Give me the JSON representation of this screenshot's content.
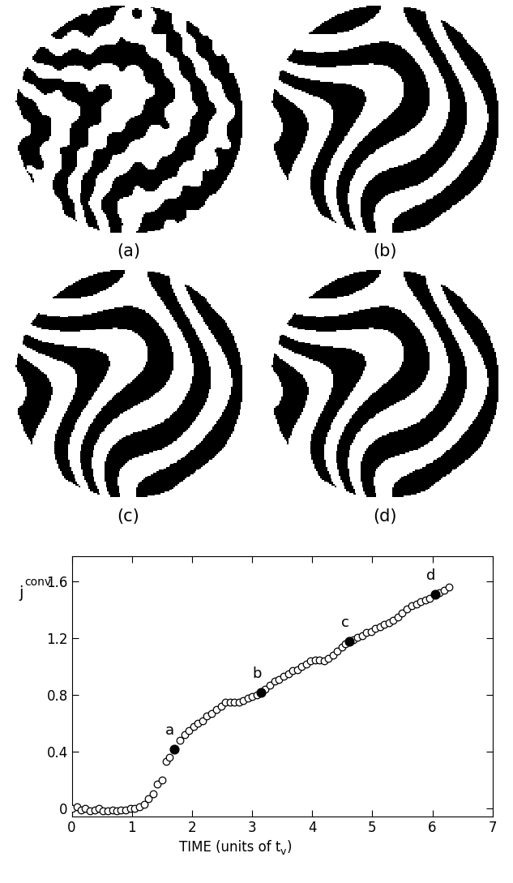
{
  "panels": [
    {
      "label": "(a)"
    },
    {
      "label": "(b)"
    },
    {
      "label": "(c)"
    },
    {
      "label": "(d)"
    }
  ],
  "chart_data": {
    "type": "scatter",
    "xlabel": "TIME (units of t",
    "xlabel_subscript": "v",
    "xlabel_end": ")",
    "ylabel": {
      "text": "j",
      "superscript": "conv"
    },
    "x": [
      0.0,
      0.08,
      0.15,
      0.22,
      0.3,
      0.38,
      0.45,
      0.52,
      0.6,
      0.68,
      0.75,
      0.82,
      0.9,
      0.97,
      1.05,
      1.12,
      1.2,
      1.27,
      1.35,
      1.42,
      1.5,
      1.57,
      1.62,
      1.8,
      1.88,
      1.95,
      2.03,
      2.1,
      2.18,
      2.25,
      2.33,
      2.4,
      2.48,
      2.55,
      2.63,
      2.7,
      2.78,
      2.85,
      2.93,
      3.0,
      3.08,
      3.22,
      3.3,
      3.37,
      3.45,
      3.52,
      3.6,
      3.67,
      3.75,
      3.82,
      3.9,
      3.97,
      4.05,
      4.12,
      4.2,
      4.27,
      4.35,
      4.42,
      4.5,
      4.55,
      4.68,
      4.75,
      4.83,
      4.9,
      4.98,
      5.05,
      5.13,
      5.2,
      5.28,
      5.35,
      5.43,
      5.5,
      5.58,
      5.65,
      5.73,
      5.8,
      5.88,
      5.95,
      6.12,
      6.2,
      6.27
    ],
    "values": [
      0.0,
      0.01,
      -0.01,
      0.0,
      -0.02,
      -0.01,
      0.0,
      -0.02,
      -0.02,
      -0.01,
      -0.02,
      -0.01,
      -0.01,
      0.0,
      0.0,
      0.01,
      0.03,
      0.07,
      0.1,
      0.17,
      0.2,
      0.33,
      0.36,
      0.48,
      0.52,
      0.55,
      0.58,
      0.6,
      0.62,
      0.65,
      0.67,
      0.7,
      0.72,
      0.75,
      0.75,
      0.75,
      0.75,
      0.76,
      0.78,
      0.79,
      0.8,
      0.84,
      0.87,
      0.9,
      0.91,
      0.93,
      0.95,
      0.97,
      0.98,
      1.0,
      1.02,
      1.04,
      1.05,
      1.05,
      1.04,
      1.06,
      1.08,
      1.11,
      1.14,
      1.16,
      1.19,
      1.21,
      1.22,
      1.24,
      1.25,
      1.27,
      1.28,
      1.3,
      1.31,
      1.33,
      1.35,
      1.38,
      1.41,
      1.43,
      1.44,
      1.46,
      1.47,
      1.48,
      1.52,
      1.54,
      1.56
    ],
    "annotations": [
      {
        "text": "a",
        "x": 1.71,
        "y": 0.42
      },
      {
        "text": "b",
        "x": 3.15,
        "y": 0.82
      },
      {
        "text": "c",
        "x": 4.62,
        "y": 1.18
      },
      {
        "text": "d",
        "x": 6.05,
        "y": 1.51
      }
    ],
    "xlim": [
      0,
      7
    ],
    "xticks": [
      0,
      1,
      2,
      3,
      4,
      5,
      6,
      7
    ],
    "ylim": [
      -0.06,
      1.78
    ],
    "yticks": [
      0,
      0.4,
      0.8,
      1.2,
      1.6
    ],
    "marker": "o",
    "color": "#000000",
    "grid": false
  }
}
